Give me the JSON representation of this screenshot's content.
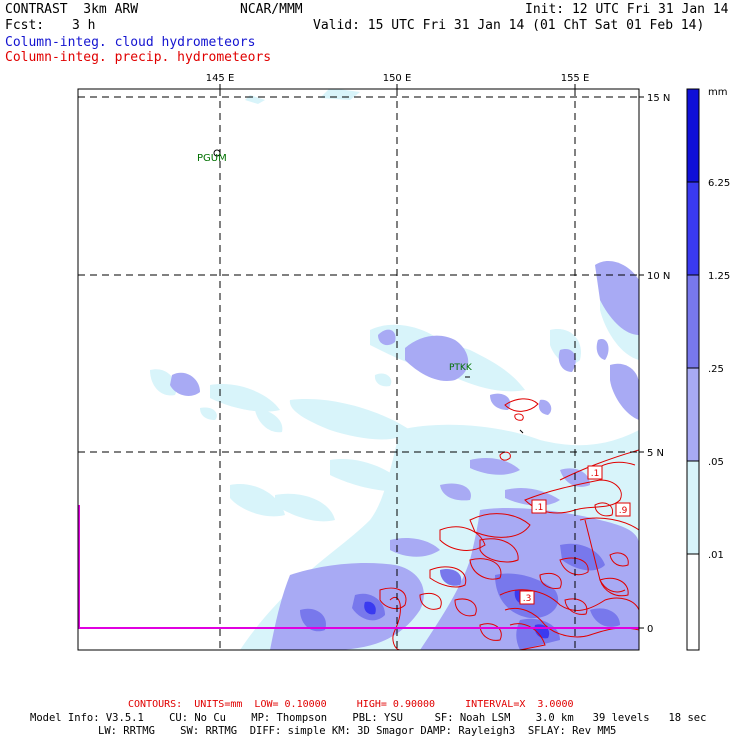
{
  "header": {
    "title_left": "CONTRAST  3km ARW",
    "center": "NCAR/MMM",
    "init": "Init: 12 UTC Fri 31 Jan 14",
    "fcst_label": "Fcst:",
    "fcst_value": "3 h",
    "valid": "Valid: 15 UTC Fri 31 Jan 14 (01 ChT Sat 01 Feb 14)",
    "field1": "Column-integ. cloud hydrometeors",
    "field2": "Column-integ. precip. hydrometeors"
  },
  "map": {
    "lon_labels": [
      "145 E",
      "150 E",
      "155 E"
    ],
    "lat_labels": [
      "15 N",
      "10 N",
      "5 N",
      "0"
    ],
    "stations": [
      "PGUM",
      "PTKK"
    ],
    "contour_labels": [
      ".1",
      ".1",
      ".9",
      ".3"
    ]
  },
  "colorbar": {
    "unit": "mm",
    "labels": [
      "6.25",
      "1.25",
      ".25",
      ".05",
      ".01"
    ],
    "colors": [
      "#1010d8",
      "#3a3af0",
      "#7878ec",
      "#a8aaf4",
      "#d8f4fa",
      "#ffffff"
    ]
  },
  "footer": {
    "contours": "CONTOURS:  UNITS=mm  LOW= 0.10000     HIGH= 0.90000     INTERVAL=X  3.0000",
    "line1": "Model Info: V3.5.1    CU: No Cu    MP: Thompson    PBL: YSU     SF: Noah LSM    3.0 km   39 levels   18 sec",
    "line2": "LW: RRTMG    SW: RRTMG  DIFF: simple KM: 3D Smagor DAMP: Rayleigh3  SFLAY: Rev MM5"
  }
}
